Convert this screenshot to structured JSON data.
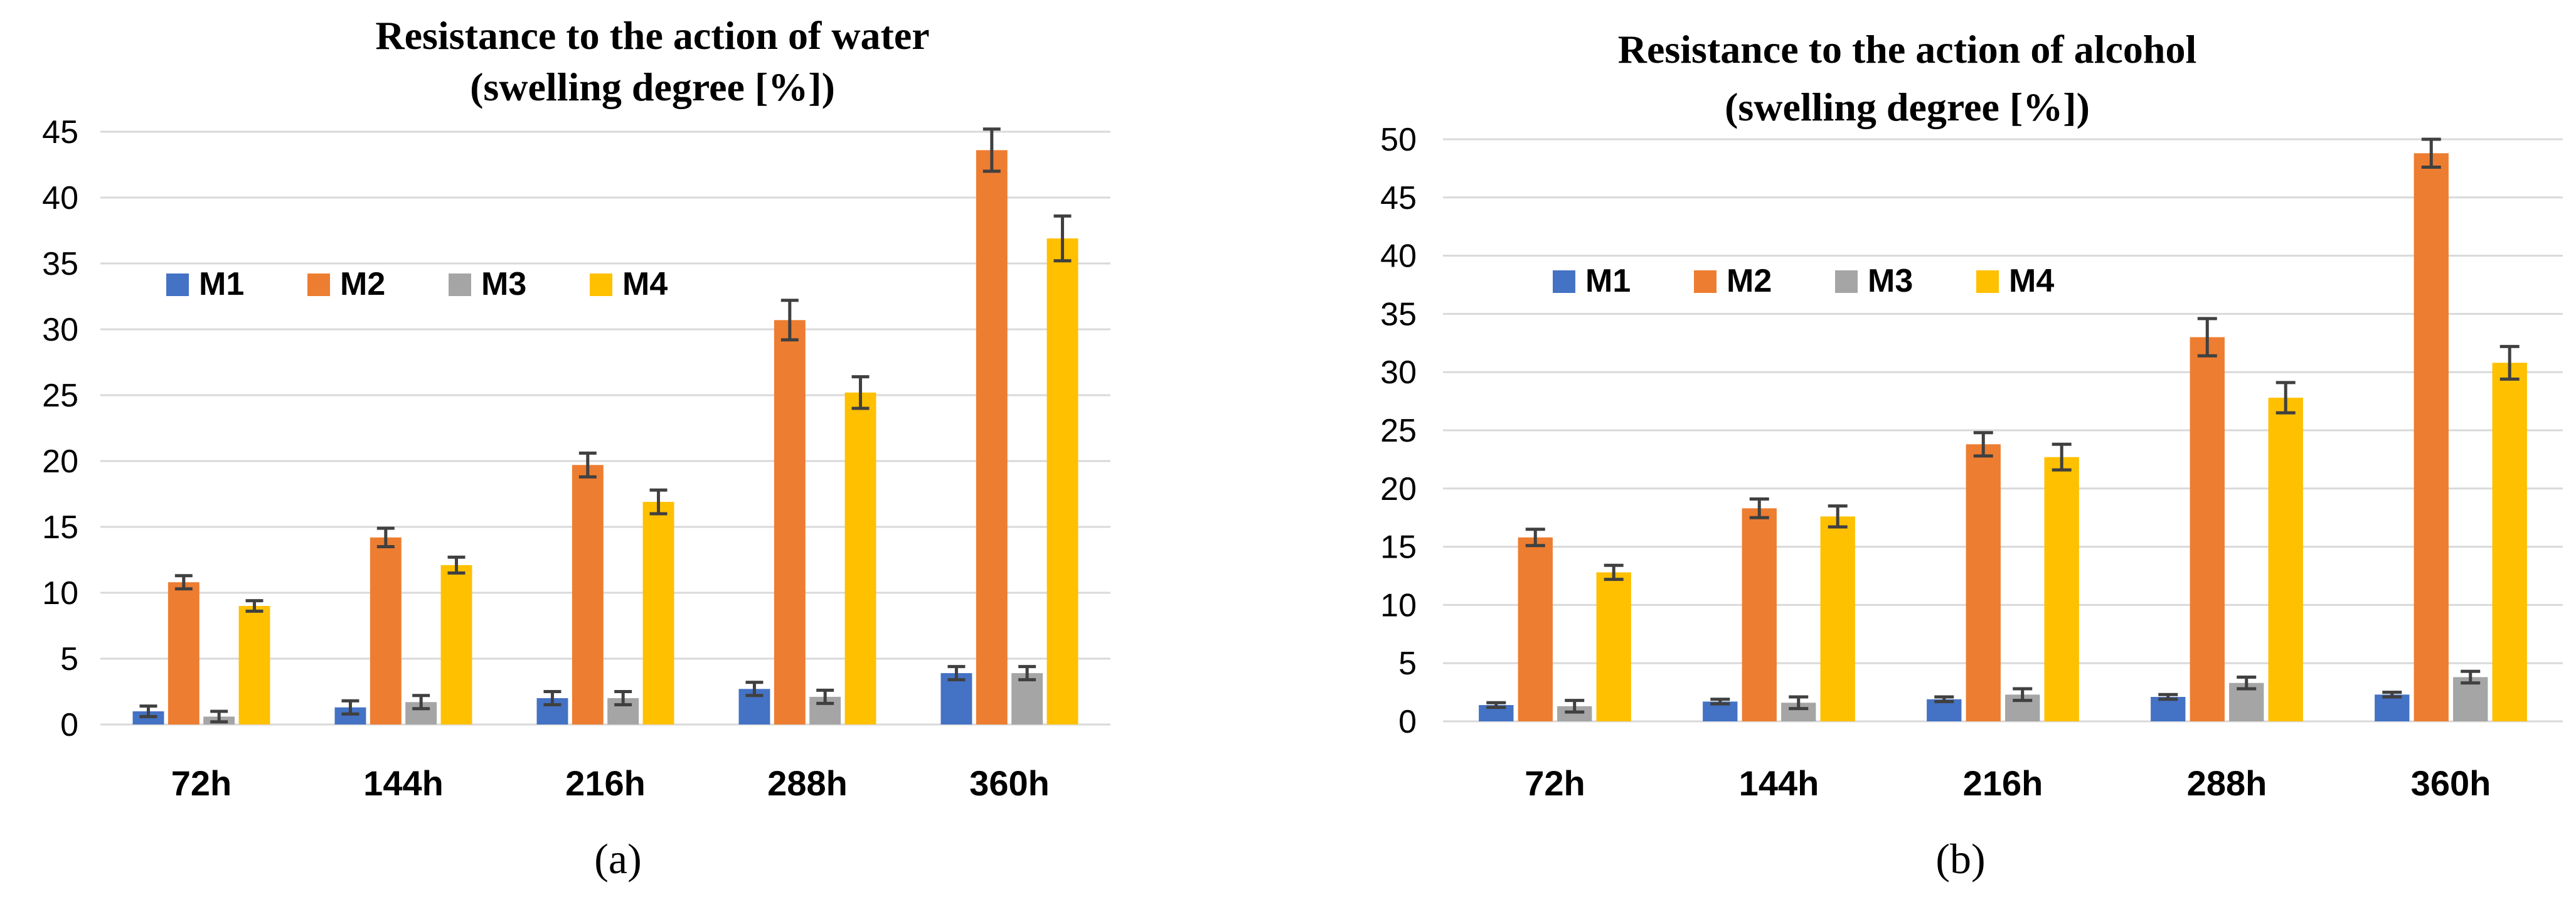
{
  "chart_data": [
    {
      "type": "bar",
      "title_lines": [
        "Resistance to the action of water",
        "(swelling degree [%])"
      ],
      "categories": [
        "72h",
        "144h",
        "216h",
        "288h",
        "360h"
      ],
      "ylim": [
        0,
        45
      ],
      "yticks": [
        0,
        5,
        10,
        15,
        20,
        25,
        30,
        35,
        40,
        45
      ],
      "legend_position": "upper-left",
      "series": [
        {
          "name": "M1",
          "color": "#4472C4",
          "values": [
            1.0,
            1.3,
            2.0,
            2.7,
            3.9
          ],
          "errors": [
            0.4,
            0.5,
            0.5,
            0.5,
            0.5
          ]
        },
        {
          "name": "M2",
          "color": "#ED7D31",
          "values": [
            10.8,
            14.2,
            19.7,
            30.7,
            43.6
          ],
          "errors": [
            0.5,
            0.7,
            0.9,
            1.5,
            1.6
          ]
        },
        {
          "name": "M3",
          "color": "#A5A5A5",
          "values": [
            0.6,
            1.7,
            2.0,
            2.1,
            3.9
          ],
          "errors": [
            0.4,
            0.5,
            0.5,
            0.5,
            0.5
          ]
        },
        {
          "name": "M4",
          "color": "#FFC000",
          "values": [
            9.0,
            12.1,
            16.9,
            25.2,
            36.9
          ],
          "errors": [
            0.4,
            0.6,
            0.9,
            1.2,
            1.7
          ]
        }
      ],
      "caption": "(a)"
    },
    {
      "type": "bar",
      "title_lines": [
        "Resistance to the action of alcohol",
        "(swelling degree [%])"
      ],
      "categories": [
        "72h",
        "144h",
        "216h",
        "288h",
        "360h"
      ],
      "ylim": [
        0,
        50
      ],
      "yticks": [
        0,
        5,
        10,
        15,
        20,
        25,
        30,
        35,
        40,
        45,
        50
      ],
      "legend_position": "upper-left",
      "series": [
        {
          "name": "M1",
          "color": "#4472C4",
          "values": [
            1.4,
            1.7,
            1.9,
            2.1,
            2.3
          ],
          "errors": [
            0.2,
            0.2,
            0.2,
            0.2,
            0.2
          ]
        },
        {
          "name": "M2",
          "color": "#ED7D31",
          "values": [
            15.8,
            18.3,
            23.8,
            33.0,
            48.8
          ],
          "errors": [
            0.7,
            0.8,
            1.0,
            1.6,
            1.2
          ]
        },
        {
          "name": "M3",
          "color": "#A5A5A5",
          "values": [
            1.3,
            1.6,
            2.3,
            3.3,
            3.8
          ],
          "errors": [
            0.5,
            0.5,
            0.5,
            0.5,
            0.5
          ]
        },
        {
          "name": "M4",
          "color": "#FFC000",
          "values": [
            12.8,
            17.6,
            22.7,
            27.8,
            30.8
          ],
          "errors": [
            0.6,
            0.9,
            1.1,
            1.3,
            1.4
          ]
        }
      ],
      "caption": "(b)"
    }
  ]
}
